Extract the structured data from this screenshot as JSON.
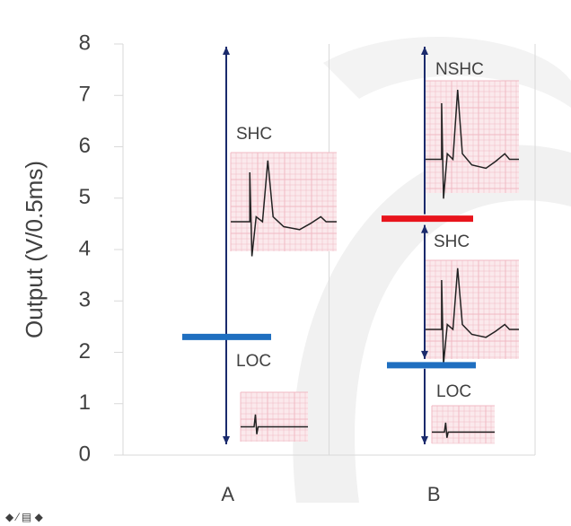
{
  "chart_data": {
    "type": "threshold",
    "y_label": "Output (V/0.5ms)",
    "categories": [
      "A",
      "B"
    ],
    "ylim": [
      0,
      8
    ],
    "yticks": [
      0,
      1,
      2,
      3,
      4,
      5,
      6,
      7,
      8
    ],
    "grid": true,
    "loc_threshold": [
      2.3,
      1.75
    ],
    "loc_color": "#1f6fc0",
    "nshc_threshold": [
      null,
      4.6
    ],
    "nshc_color": "#e8141c",
    "arrow_color": "#1a2a6c",
    "region_labels": [
      [
        "SHC",
        "LOC"
      ],
      [
        "NSHC",
        "SHC",
        "LOC"
      ]
    ]
  }
}
